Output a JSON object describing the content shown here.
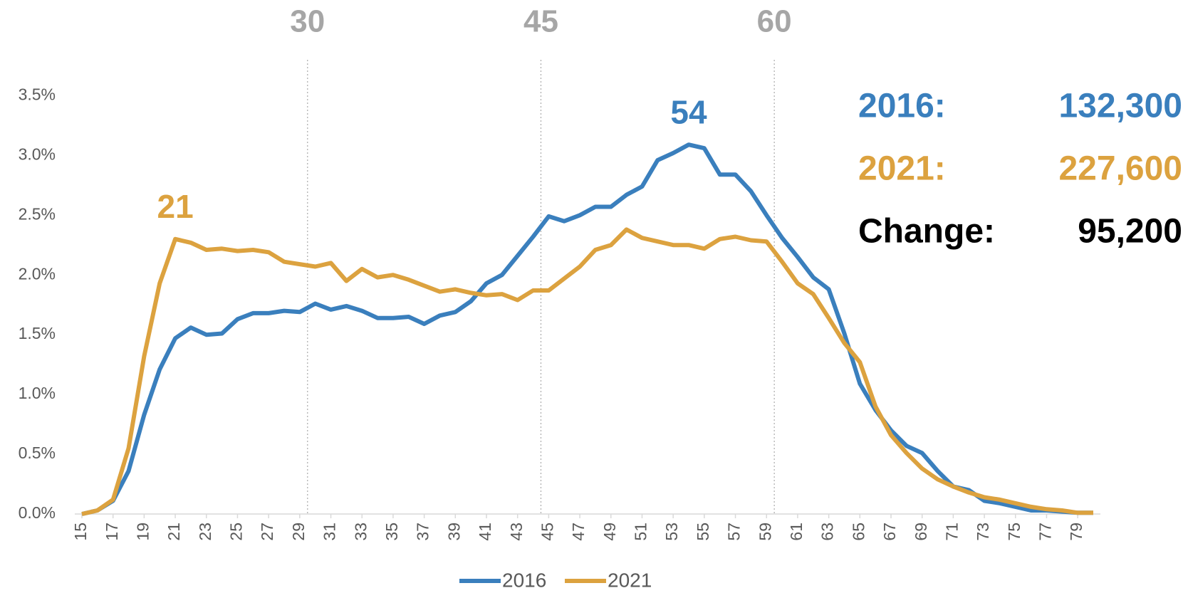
{
  "chart_data": {
    "type": "line",
    "x": [
      15,
      16,
      17,
      18,
      19,
      20,
      21,
      22,
      23,
      24,
      25,
      26,
      27,
      28,
      29,
      30,
      31,
      32,
      33,
      34,
      35,
      36,
      37,
      38,
      39,
      40,
      41,
      42,
      43,
      44,
      45,
      46,
      47,
      48,
      49,
      50,
      51,
      52,
      53,
      54,
      55,
      56,
      57,
      58,
      59,
      60,
      61,
      62,
      63,
      64,
      65,
      66,
      67,
      68,
      69,
      70,
      71,
      72,
      73,
      74,
      75,
      76,
      77,
      78,
      79,
      80
    ],
    "xlim": [
      15,
      80
    ],
    "xticks": [
      15,
      17,
      19,
      21,
      23,
      25,
      27,
      29,
      31,
      33,
      35,
      37,
      39,
      41,
      43,
      45,
      47,
      49,
      51,
      53,
      55,
      57,
      59,
      61,
      63,
      65,
      67,
      69,
      71,
      73,
      75,
      77,
      79
    ],
    "ylim": [
      0,
      3.8
    ],
    "yticks": [
      {
        "value": 0,
        "label": "0.0%"
      },
      {
        "value": 0.5,
        "label": "0.5%"
      },
      {
        "value": 1,
        "label": "1.0%"
      },
      {
        "value": 1.5,
        "label": "1.5%"
      },
      {
        "value": 2,
        "label": "2.0%"
      },
      {
        "value": 2.5,
        "label": "2.5%"
      },
      {
        "value": 3,
        "label": "3.0%"
      },
      {
        "value": 3.5,
        "label": "3.5%"
      }
    ],
    "series": [
      {
        "name": "2016",
        "color": "#3a7fbd",
        "values": [
          0.0,
          0.03,
          0.11,
          0.36,
          0.83,
          1.21,
          1.47,
          1.56,
          1.5,
          1.51,
          1.63,
          1.68,
          1.68,
          1.7,
          1.69,
          1.76,
          1.71,
          1.74,
          1.7,
          1.64,
          1.64,
          1.65,
          1.59,
          1.66,
          1.69,
          1.78,
          1.93,
          2.0,
          2.16,
          2.32,
          2.49,
          2.45,
          2.5,
          2.57,
          2.57,
          2.67,
          2.74,
          2.96,
          3.02,
          3.09,
          3.06,
          2.84,
          2.84,
          2.7,
          2.5,
          2.31,
          2.15,
          1.98,
          1.88,
          1.51,
          1.09,
          0.87,
          0.7,
          0.57,
          0.51,
          0.36,
          0.23,
          0.2,
          0.11,
          0.09,
          0.06,
          0.03,
          0.03,
          0.02,
          0.01,
          0.01
        ]
      },
      {
        "name": "2021",
        "color": "#dca23f",
        "values": [
          0.0,
          0.03,
          0.12,
          0.55,
          1.32,
          1.93,
          2.3,
          2.27,
          2.21,
          2.22,
          2.2,
          2.21,
          2.19,
          2.11,
          2.09,
          2.07,
          2.1,
          1.95,
          2.05,
          1.98,
          2.0,
          1.96,
          1.91,
          1.86,
          1.88,
          1.85,
          1.83,
          1.84,
          1.79,
          1.87,
          1.87,
          1.97,
          2.07,
          2.21,
          2.25,
          2.38,
          2.31,
          2.28,
          2.25,
          2.25,
          2.22,
          2.3,
          2.32,
          2.29,
          2.28,
          2.11,
          1.93,
          1.84,
          1.64,
          1.43,
          1.27,
          0.9,
          0.66,
          0.51,
          0.38,
          0.29,
          0.23,
          0.18,
          0.14,
          0.12,
          0.09,
          0.06,
          0.04,
          0.03,
          0.01,
          0.01
        ]
      }
    ],
    "reference_lines": [
      {
        "value": 29.5,
        "label": "30"
      },
      {
        "value": 44.5,
        "label": "45"
      },
      {
        "value": 59.5,
        "label": "60"
      }
    ],
    "annotations": [
      {
        "text": 21,
        "x": 21,
        "series": 1
      },
      {
        "text": 54,
        "x": 54,
        "series": 0
      }
    ],
    "summary": [
      {
        "label": "2016:",
        "value": "132,300",
        "color": "#3a7fbd"
      },
      {
        "label": "2021:",
        "value": "227,600",
        "color": "#dca23f"
      },
      {
        "label": "Change:",
        "value": "95,200",
        "color": "#000000"
      }
    ]
  }
}
